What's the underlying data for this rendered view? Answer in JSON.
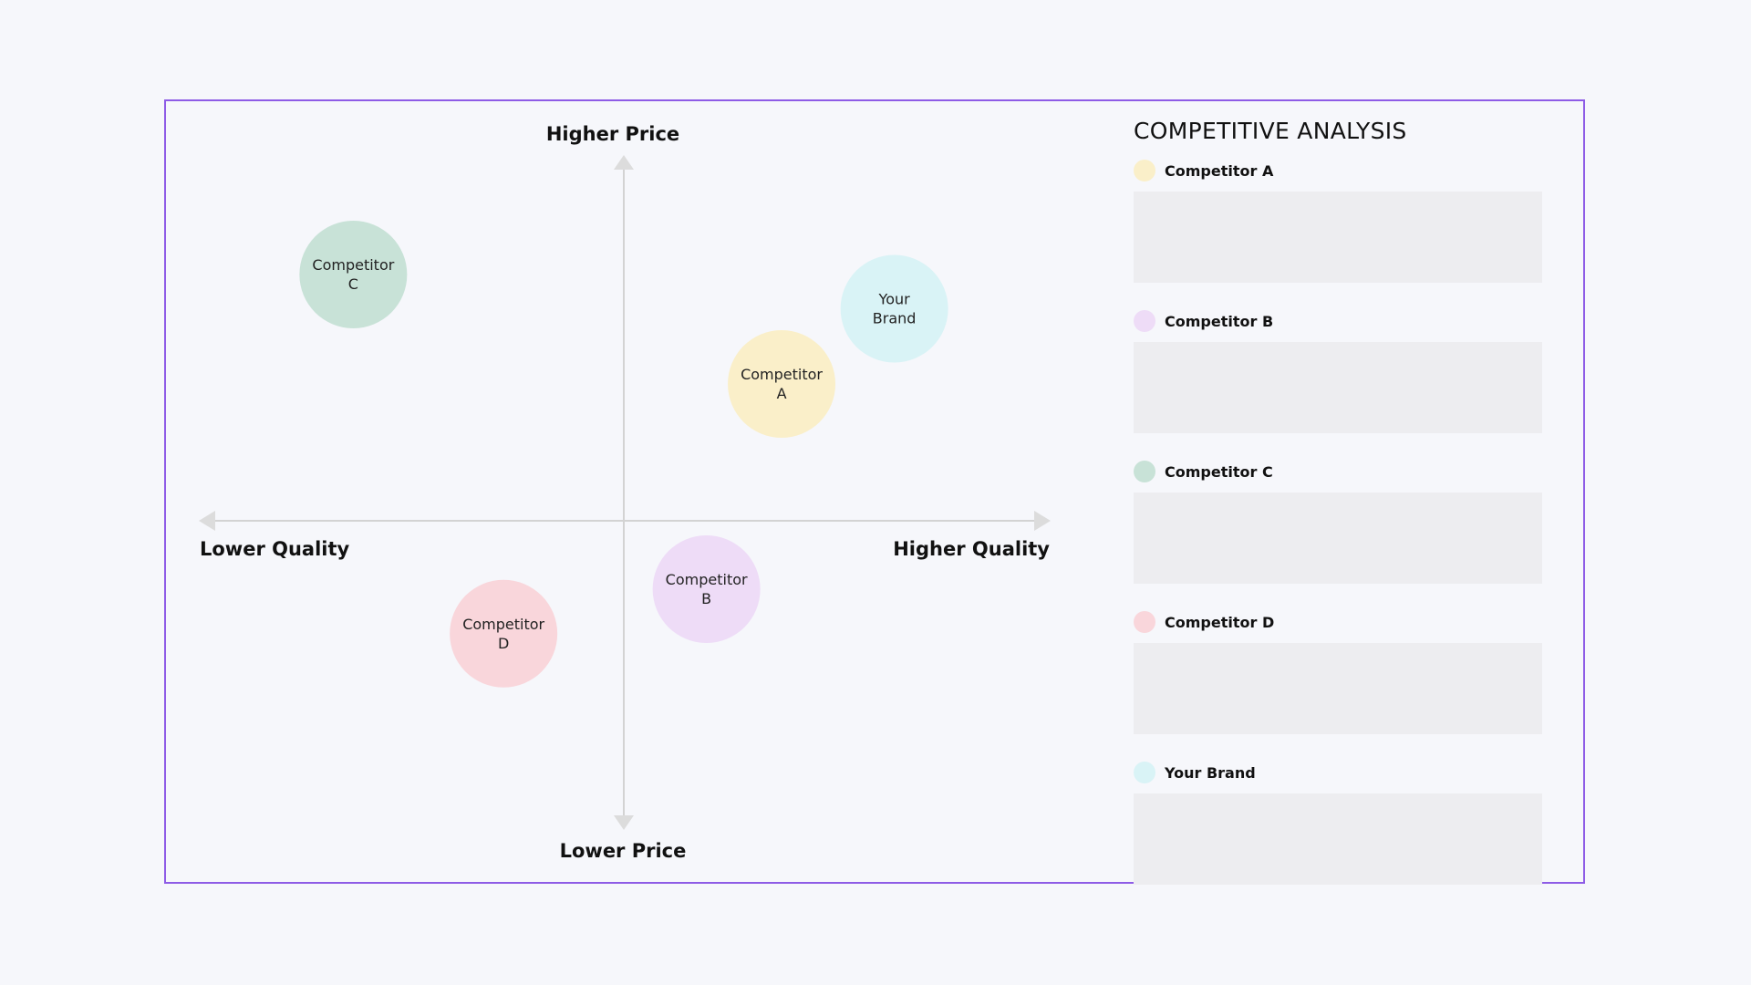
{
  "colors": {
    "frame_border": "#8e5ce6",
    "background": "#f6f7fb",
    "axis": "#d3d3d3",
    "placeholder_box": "#ededf0"
  },
  "axes": {
    "top": "Higher Price",
    "bottom": "Lower Price",
    "left": "Lower Quality",
    "right": "Higher Quality"
  },
  "bubbles": [
    {
      "line1": "Competitor",
      "line2": "C",
      "color": "#c8e2d7",
      "quality": -0.72,
      "price": 0.72
    },
    {
      "line1": "Your",
      "line2": "Brand",
      "color": "#d9f3f6",
      "quality": 0.72,
      "price": 0.62
    },
    {
      "line1": "Competitor",
      "line2": "A",
      "color": "#faefc9",
      "quality": 0.42,
      "price": 0.4
    },
    {
      "line1": "Competitor",
      "line2": "B",
      "color": "#eedcf7",
      "quality": 0.22,
      "price": -0.2
    },
    {
      "line1": "Competitor",
      "line2": "D",
      "color": "#f9d6db",
      "quality": -0.32,
      "price": -0.33
    }
  ],
  "panel": {
    "title": "COMPETITIVE ANALYSIS",
    "items": [
      {
        "name": "Competitor A",
        "color": "#faefc9"
      },
      {
        "name": "Competitor B",
        "color": "#eedcf7"
      },
      {
        "name": "Competitor C",
        "color": "#c8e2d7"
      },
      {
        "name": "Competitor D",
        "color": "#f9d6db"
      },
      {
        "name": "Your Brand",
        "color": "#d9f3f6"
      }
    ]
  }
}
